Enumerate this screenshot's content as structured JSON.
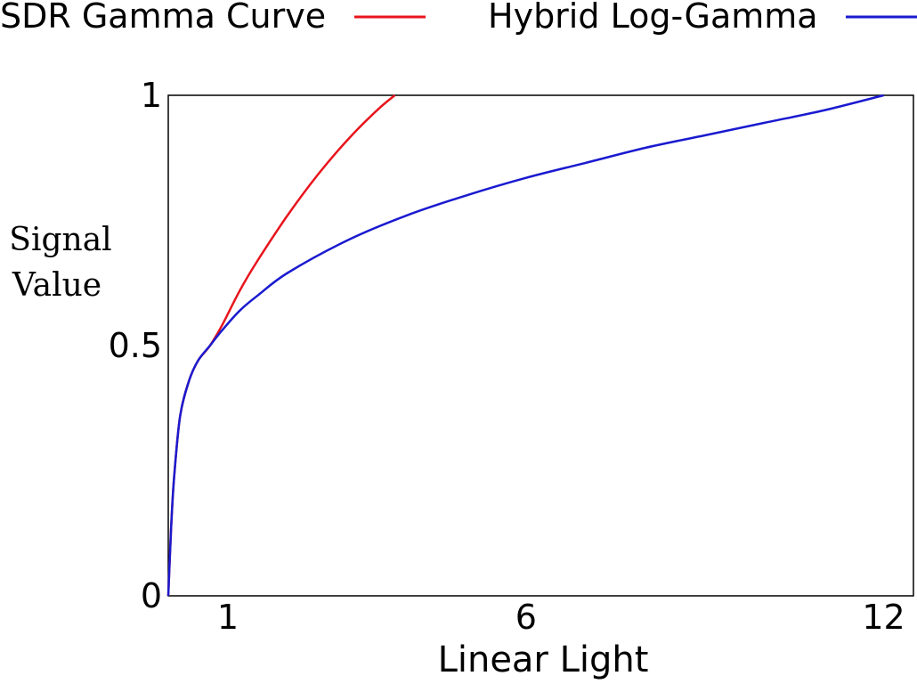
{
  "chart_data": {
    "type": "line",
    "xlabel": "Linear Light",
    "ylabel_lines": [
      "Signal",
      "Value"
    ],
    "xlim": [
      0,
      12.5
    ],
    "ylim": [
      0,
      1
    ],
    "x_ticks": [
      {
        "value": 1,
        "label": "1"
      },
      {
        "value": 6,
        "label": "6"
      },
      {
        "value": 12,
        "label": "12"
      }
    ],
    "y_ticks": [
      {
        "value": 0,
        "label": "0"
      },
      {
        "value": 0.5,
        "label": "0.5"
      },
      {
        "value": 1,
        "label": "1"
      }
    ],
    "grid": false,
    "legend": "top",
    "series": [
      {
        "name": "SDR Gamma Curve",
        "color": "#e8141c",
        "x": [
          0,
          0.05,
          0.1,
          0.2,
          0.35,
          0.5,
          0.7,
          0.9,
          1.2,
          1.5,
          2.0,
          2.5,
          3.0,
          3.5,
          3.8
        ],
        "y": [
          0,
          0.14,
          0.24,
          0.36,
          0.43,
          0.47,
          0.5,
          0.54,
          0.61,
          0.67,
          0.76,
          0.84,
          0.91,
          0.97,
          1.0
        ]
      },
      {
        "name": "Hybrid Log-Gamma",
        "color": "#1a1ad0",
        "x": [
          0,
          0.05,
          0.1,
          0.2,
          0.35,
          0.5,
          0.7,
          0.9,
          1.2,
          1.5,
          2,
          3,
          4,
          5,
          6,
          7,
          8,
          9,
          10,
          11,
          12
        ],
        "y": [
          0,
          0.14,
          0.24,
          0.36,
          0.43,
          0.47,
          0.5,
          0.53,
          0.57,
          0.6,
          0.645,
          0.71,
          0.76,
          0.8,
          0.835,
          0.865,
          0.895,
          0.92,
          0.945,
          0.97,
          1.0
        ]
      }
    ]
  }
}
